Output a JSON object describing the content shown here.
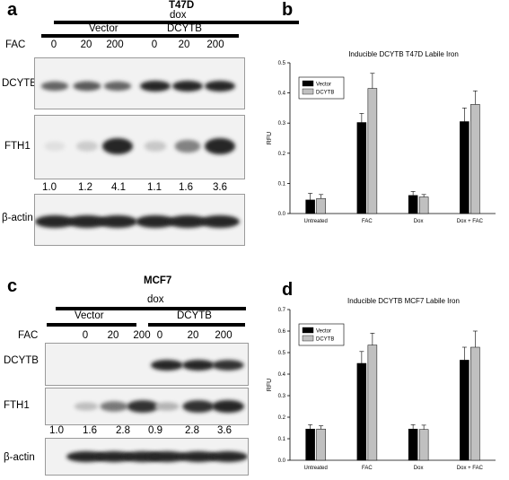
{
  "panel_a": {
    "letter": "a",
    "cell_line": "T47D",
    "treatment": "dox",
    "groups": [
      "Vector",
      "DCYTB"
    ],
    "fac_label": "FAC",
    "fac_values": [
      "0",
      "20",
      "200",
      "0",
      "20",
      "200"
    ],
    "rows": [
      {
        "label": "DCYTB",
        "intensities": [
          0.7,
          0.75,
          0.7,
          1.0,
          1.0,
          1.0
        ]
      },
      {
        "label": "FTH1",
        "intensities": [
          0.08,
          0.18,
          1.0,
          0.2,
          0.55,
          1.0
        ]
      },
      {
        "label": "β-actin",
        "intensities": [
          1.0,
          1.0,
          1.0,
          1.0,
          1.0,
          1.0
        ]
      }
    ],
    "quant": [
      "1.0",
      "1.2",
      "4.1",
      "1.1",
      "1.6",
      "3.6"
    ]
  },
  "panel_c": {
    "letter": "c",
    "cell_line": "MCF7",
    "treatment": "dox",
    "groups": [
      "Vector",
      "DCYTB"
    ],
    "fac_label": "FAC",
    "fac_values": [
      "0",
      "20",
      "200",
      "0",
      "20",
      "200"
    ],
    "rows": [
      {
        "label": "DCYTB",
        "intensities": [
          0.0,
          0.0,
          0.0,
          1.0,
          1.0,
          0.95
        ]
      },
      {
        "label": "FTH1",
        "intensities": [
          0.25,
          0.6,
          0.95,
          0.3,
          0.95,
          1.0
        ]
      },
      {
        "label": "β-actin",
        "intensities": [
          1.0,
          1.0,
          1.0,
          1.0,
          1.0,
          1.0
        ]
      }
    ],
    "quant": [
      "1.0",
      "1.6",
      "2.8",
      "0.9",
      "2.8",
      "3.6"
    ]
  },
  "panel_b": {
    "letter": "b"
  },
  "panel_d": {
    "letter": "d"
  },
  "chart_data": [
    {
      "type": "bar",
      "title": "Inducible DCYTB T47D Labile Iron",
      "ylabel": "RFU",
      "xlabel": "",
      "ylim": [
        0,
        0.5
      ],
      "yticks": [
        "0.0",
        "0.1",
        "0.2",
        "0.3",
        "0.4",
        "0.5"
      ],
      "categories": [
        "Untreated",
        "FAC",
        "Dox",
        "Dox + FAC"
      ],
      "series": [
        {
          "name": "Vector",
          "color": "#000000",
          "values": [
            0.045,
            0.302,
            0.06,
            0.305
          ],
          "errors": [
            0.022,
            0.03,
            0.013,
            0.045
          ]
        },
        {
          "name": "DCYTB",
          "color": "#c0c0c0",
          "values": [
            0.05,
            0.415,
            0.055,
            0.362
          ],
          "errors": [
            0.013,
            0.05,
            0.008,
            0.045
          ]
        }
      ],
      "legend": "top-left"
    },
    {
      "type": "bar",
      "title": "Inducible DCYTB MCF7 Labile Iron",
      "ylabel": "RFU",
      "xlabel": "",
      "ylim": [
        0,
        0.7
      ],
      "yticks": [
        "0.0",
        "0.1",
        "0.2",
        "0.3",
        "0.4",
        "0.5",
        "0.6",
        "0.7"
      ],
      "categories": [
        "Untreated",
        "FAC",
        "Dox",
        "Dox + FAC"
      ],
      "series": [
        {
          "name": "Vector",
          "color": "#000000",
          "values": [
            0.145,
            0.45,
            0.145,
            0.465
          ],
          "errors": [
            0.02,
            0.055,
            0.02,
            0.06
          ]
        },
        {
          "name": "DCYTB",
          "color": "#c0c0c0",
          "values": [
            0.145,
            0.535,
            0.143,
            0.525
          ],
          "errors": [
            0.015,
            0.055,
            0.02,
            0.075
          ]
        }
      ],
      "legend": "top-left"
    }
  ]
}
